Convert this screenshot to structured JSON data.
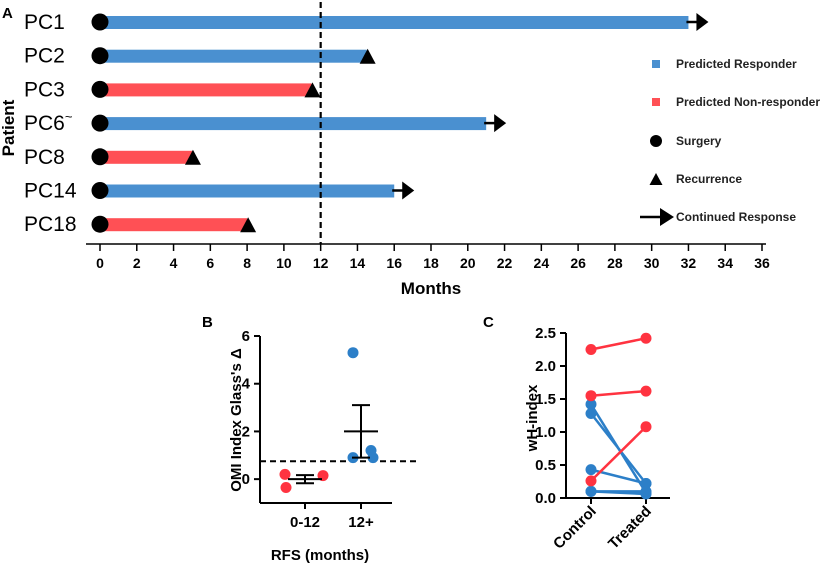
{
  "chart_data": [
    {
      "panel": "A",
      "type": "bar",
      "title": "",
      "xlabel": "Months",
      "ylabel": "Patient",
      "xlim": [
        0,
        36
      ],
      "xticks": [
        0,
        2,
        4,
        6,
        8,
        10,
        12,
        14,
        16,
        18,
        20,
        22,
        24,
        26,
        28,
        30,
        32,
        34,
        36
      ],
      "reference_line": 12,
      "patients": [
        {
          "name": "PC1",
          "end": 32,
          "status": "responder",
          "outcome": "continued"
        },
        {
          "name": "PC2",
          "end": 14.5,
          "status": "responder",
          "outcome": "recurrence"
        },
        {
          "name": "PC3",
          "end": 11.5,
          "status": "non-responder",
          "outcome": "recurrence"
        },
        {
          "name": "PC6",
          "superscript": "~",
          "end": 21,
          "status": "responder",
          "outcome": "continued"
        },
        {
          "name": "PC8",
          "end": 5,
          "status": "non-responder",
          "outcome": "recurrence"
        },
        {
          "name": "PC14",
          "end": 16,
          "status": "responder",
          "outcome": "continued"
        },
        {
          "name": "PC18",
          "end": 8,
          "status": "non-responder",
          "outcome": "recurrence"
        }
      ],
      "legend": [
        {
          "key": "responder",
          "label": "Predicted Responder",
          "color": "#4a90d0"
        },
        {
          "key": "non-responder",
          "label": "Predicted Non-responder",
          "color": "#ff5055"
        },
        {
          "key": "surgery",
          "label": "Surgery"
        },
        {
          "key": "recurrence",
          "label": "Recurrence"
        },
        {
          "key": "continued",
          "label": "Continued Response"
        }
      ]
    },
    {
      "panel": "B",
      "type": "scatter",
      "xlabel": "RFS (months)",
      "ylabel": "OMI Index Glass's Δ",
      "ylim": [
        -1,
        6
      ],
      "yticks": [
        0,
        2,
        4,
        6
      ],
      "categories": [
        "0-12",
        "12+"
      ],
      "reference_line": 0.75,
      "groups": [
        {
          "category": "0-12",
          "color": "#ff3340",
          "points": [
            0.2,
            -0.35,
            0.15
          ],
          "mean": 0.0,
          "sem": 0.17
        },
        {
          "category": "12+",
          "color": "#2c7fc8",
          "points": [
            5.3,
            1.2,
            0.9,
            0.9
          ],
          "mean": 2.0,
          "sem": 1.1
        }
      ]
    },
    {
      "panel": "C",
      "type": "line",
      "xlabel": "",
      "ylabel": "wH-index",
      "ylim": [
        0,
        2.5
      ],
      "yticks": [
        0.0,
        0.5,
        1.0,
        1.5,
        2.0,
        2.5
      ],
      "categories": [
        "Control",
        "Treated"
      ],
      "series": [
        {
          "color": "#2c7fc8",
          "values": [
            1.42,
            0.08
          ]
        },
        {
          "color": "#2c7fc8",
          "values": [
            1.28,
            0.22
          ]
        },
        {
          "color": "#2c7fc8",
          "values": [
            0.43,
            0.22
          ]
        },
        {
          "color": "#2c7fc8",
          "values": [
            0.1,
            0.1
          ]
        },
        {
          "color": "#2c7fc8",
          "values": [
            0.1,
            0.06
          ]
        },
        {
          "color": "#ff3340",
          "values": [
            2.25,
            2.42
          ]
        },
        {
          "color": "#ff3340",
          "values": [
            1.55,
            1.62
          ]
        },
        {
          "color": "#ff3340",
          "values": [
            0.26,
            1.08
          ]
        }
      ]
    }
  ]
}
